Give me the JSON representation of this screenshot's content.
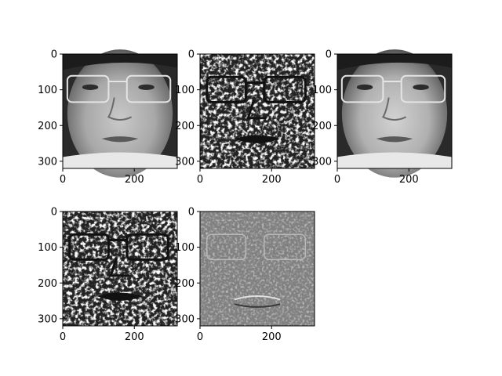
{
  "figure": {
    "background": "#ffffff",
    "layout": {
      "rows": 2,
      "cols": 3
    }
  },
  "chart_data": [
    {
      "type": "image",
      "panel": [
        0,
        0
      ],
      "content": "grayscale-face-photo",
      "cmap": "gray",
      "xlim": [
        0,
        320
      ],
      "ylim": [
        320,
        0
      ],
      "xticks": [
        0,
        200
      ],
      "yticks": [
        0,
        100,
        200,
        300
      ],
      "xtick_labels": [
        "0",
        "200"
      ],
      "ytick_labels": [
        "0",
        "100",
        "200",
        "300"
      ]
    },
    {
      "type": "image",
      "panel": [
        0,
        1
      ],
      "content": "high-contrast-texture-filter",
      "cmap": "gray",
      "xlim": [
        0,
        320
      ],
      "ylim": [
        320,
        0
      ],
      "xticks": [
        0,
        200
      ],
      "yticks": [
        0,
        100,
        200,
        300
      ],
      "xtick_labels": [
        "0",
        "200"
      ],
      "ytick_labels": [
        "0",
        "100",
        "200",
        "300"
      ]
    },
    {
      "type": "image",
      "panel": [
        0,
        2
      ],
      "content": "grayscale-face-photo-equalized",
      "cmap": "gray",
      "xlim": [
        0,
        320
      ],
      "ylim": [
        320,
        0
      ],
      "xticks": [
        0,
        200
      ],
      "yticks": [
        0,
        100,
        200,
        300
      ],
      "xtick_labels": [
        "0",
        "200"
      ],
      "ytick_labels": [
        "0",
        "100",
        "200",
        "300"
      ]
    },
    {
      "type": "image",
      "panel": [
        1,
        0
      ],
      "content": "high-contrast-texture-filter",
      "cmap": "gray",
      "xlim": [
        0,
        320
      ],
      "ylim": [
        320,
        0
      ],
      "xticks": [
        0,
        200
      ],
      "yticks": [
        0,
        100,
        200,
        300
      ],
      "xtick_labels": [
        "0",
        "200"
      ],
      "ytick_labels": [
        "0",
        "100",
        "200",
        "300"
      ]
    },
    {
      "type": "image",
      "panel": [
        1,
        1
      ],
      "content": "edge-response-map-gray",
      "cmap": "gray",
      "xlim": [
        0,
        320
      ],
      "ylim": [
        320,
        0
      ],
      "xticks": [
        0,
        200
      ],
      "yticks": [
        0,
        100,
        200,
        300
      ],
      "xtick_labels": [
        "0",
        "200"
      ],
      "ytick_labels": [
        "0",
        "100",
        "200",
        "300"
      ]
    }
  ]
}
